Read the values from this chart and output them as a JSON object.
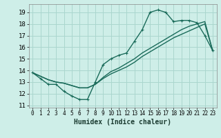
{
  "xlabel": "Humidex (Indice chaleur)",
  "bg_color": "#ceeee8",
  "grid_color": "#aad6ce",
  "line_color": "#1a6b5a",
  "xlim": [
    -0.5,
    23.5
  ],
  "ylim": [
    10.8,
    19.7
  ],
  "xticks": [
    0,
    1,
    2,
    3,
    4,
    5,
    6,
    7,
    8,
    9,
    10,
    11,
    12,
    13,
    14,
    15,
    16,
    17,
    18,
    19,
    20,
    21,
    22,
    23
  ],
  "yticks": [
    11,
    12,
    13,
    14,
    15,
    16,
    17,
    18,
    19
  ],
  "line1_x": [
    0,
    1,
    2,
    3,
    4,
    5,
    6,
    7,
    8,
    9,
    10,
    11,
    12,
    13,
    14,
    15,
    16,
    17,
    18,
    19,
    20,
    21,
    22,
    23
  ],
  "line1_y": [
    13.8,
    13.3,
    12.8,
    12.8,
    12.2,
    11.8,
    11.5,
    11.5,
    13.0,
    14.5,
    15.0,
    15.3,
    15.5,
    16.5,
    17.5,
    19.0,
    19.2,
    19.0,
    18.2,
    18.3,
    18.3,
    18.1,
    17.0,
    15.7
  ],
  "line2_x": [
    0,
    1,
    2,
    3,
    4,
    5,
    6,
    7,
    8,
    9,
    10,
    11,
    12,
    13,
    14,
    15,
    16,
    17,
    18,
    19,
    20,
    21,
    22,
    23
  ],
  "line2_y": [
    13.8,
    13.5,
    13.2,
    13.0,
    12.9,
    12.7,
    12.5,
    12.5,
    12.8,
    13.3,
    13.7,
    14.0,
    14.3,
    14.7,
    15.2,
    15.6,
    16.0,
    16.4,
    16.8,
    17.1,
    17.4,
    17.7,
    18.0,
    15.7
  ],
  "line3_x": [
    0,
    1,
    2,
    3,
    4,
    5,
    6,
    7,
    8,
    9,
    10,
    11,
    12,
    13,
    14,
    15,
    16,
    17,
    18,
    19,
    20,
    21,
    22,
    23
  ],
  "line3_y": [
    13.8,
    13.5,
    13.2,
    13.0,
    12.9,
    12.7,
    12.5,
    12.5,
    12.8,
    13.4,
    13.9,
    14.2,
    14.6,
    15.0,
    15.5,
    15.9,
    16.3,
    16.7,
    17.1,
    17.5,
    17.8,
    18.0,
    18.2,
    15.7
  ],
  "marker_size": 3.5,
  "line_width": 1.0
}
